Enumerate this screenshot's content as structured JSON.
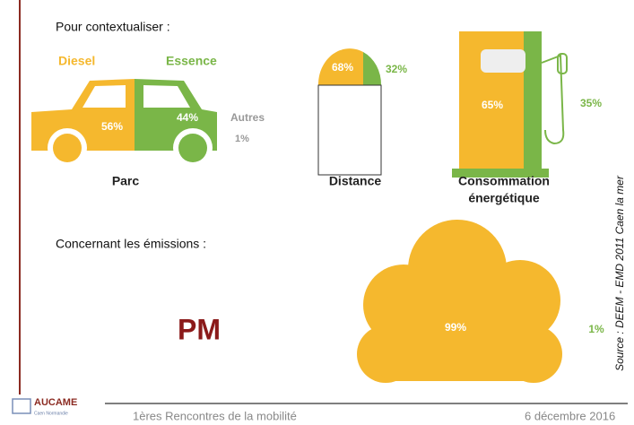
{
  "context": {
    "title": "Pour contextualiser :",
    "parc": {
      "diesel_label": "Diesel",
      "essence_label": "Essence",
      "diesel": "56%",
      "essence": "44%",
      "autres_label": "Autres",
      "autres": "1%",
      "caption": "Parc"
    },
    "distance": {
      "diesel": "68%",
      "essence": "32%",
      "caption": "Distance"
    },
    "consommation": {
      "diesel": "65%",
      "essence": "35%",
      "caption_line1": "Consommation",
      "caption_line2": "énergétique"
    }
  },
  "emissions": {
    "title": "Concernant les émissions :",
    "pollutant": "PM",
    "diesel": "99%",
    "essence": "1%"
  },
  "source": "Source : DEEM - EMD 2011 Caen la mer",
  "footer": {
    "logo": "AUCAME",
    "logo_sub": "Caen Normandie",
    "event": "1ères Rencontres de la mobilité",
    "date": "6 décembre 2016"
  }
}
